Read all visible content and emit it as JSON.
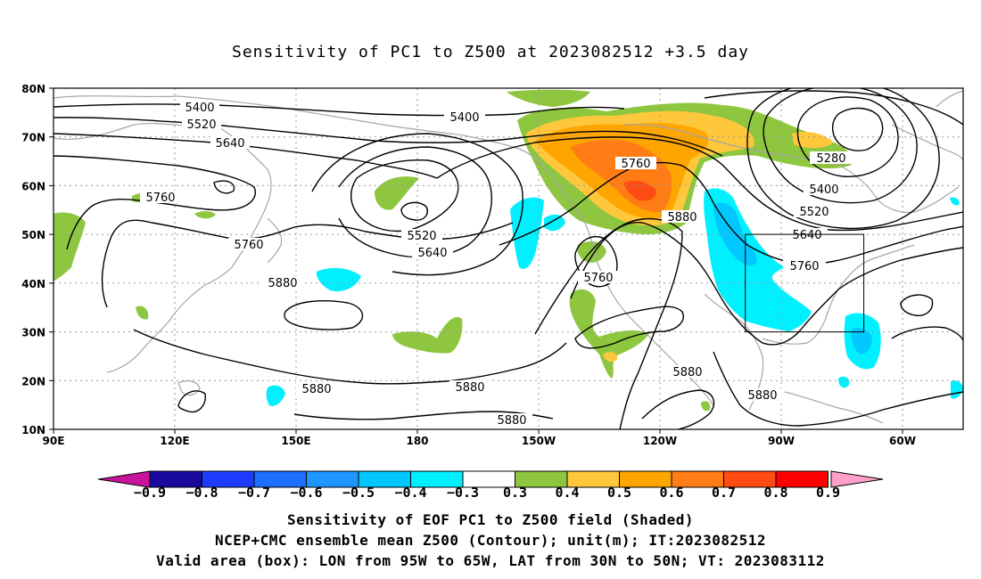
{
  "title": "Sensitivity of PC1 to Z500 at 2023082512 +3.5 day",
  "lat_labels": [
    "80N",
    "70N",
    "60N",
    "50N",
    "40N",
    "30N",
    "20N",
    "10N"
  ],
  "lon_labels": [
    "90E",
    "120E",
    "150E",
    "180",
    "150W",
    "120W",
    "90W",
    "60W"
  ],
  "contour_labels": [
    "5400",
    "5520",
    "5640",
    "5400",
    "5280",
    "5760",
    "5880",
    "5400",
    "5520",
    "5640",
    "5760",
    "5760",
    "5520",
    "5640",
    "5760",
    "5880",
    "5760",
    "5880",
    "5880",
    "5880",
    "5880",
    "5880"
  ],
  "colorbar": {
    "ticks": [
      "-0.9",
      "-0.8",
      "-0.7",
      "-0.6",
      "-0.5",
      "-0.4",
      "-0.3",
      "0.3",
      "0.4",
      "0.5",
      "0.6",
      "0.7",
      "0.8",
      "0.9"
    ],
    "colors": [
      "#1a0a9e",
      "#1e3cff",
      "#1e6eff",
      "#1e96ff",
      "#00c8ff",
      "#00f0ff",
      "#ffffff",
      "#8ec63f",
      "#ffc83c",
      "#ffa500",
      "#ff7d14",
      "#ff4b14",
      "#ff0000"
    ],
    "low_end": "#c8149b",
    "high_end": "#ffa0c8"
  },
  "footer": {
    "line1": "Sensitivity of EOF PC1 to Z500 field (Shaded)",
    "line2": "NCEP+CMC ensemble mean Z500 (Contour); unit(m); IT:2023082512",
    "line3": "Valid area (box): LON from 95W to 65W, LAT from 30N to 50N; VT: 2023083112"
  }
}
